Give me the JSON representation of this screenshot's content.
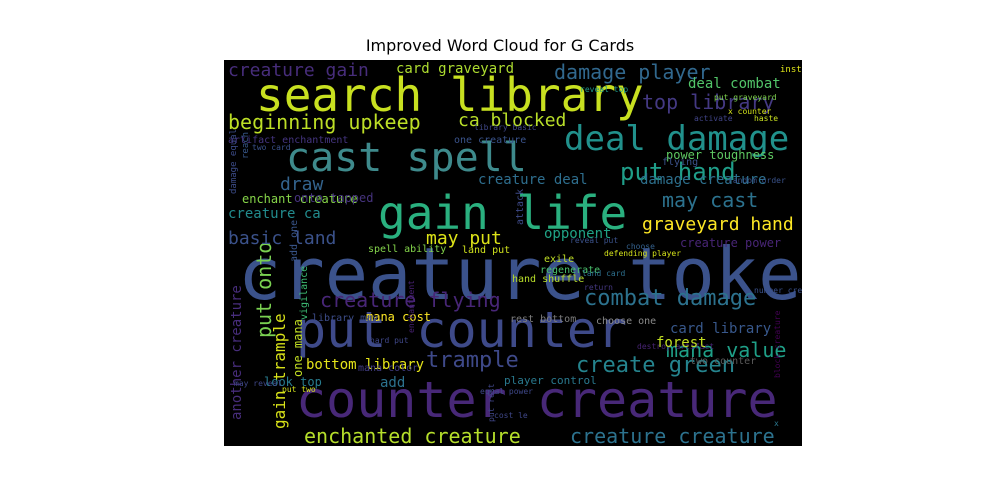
{
  "chart_data": {
    "type": "wordcloud",
    "title": "Improved Word Cloud for G Cards",
    "background": "#000000",
    "colormap": "viridis",
    "words": [
      {
        "text": "creature token",
        "color": "#3b528b"
      },
      {
        "text": "put counter",
        "color": "#3e4a89"
      },
      {
        "text": "counter creature",
        "color": "#482878"
      },
      {
        "text": "search library",
        "color": "#c8e020"
      },
      {
        "text": "gain life",
        "color": "#2ab07f"
      },
      {
        "text": "cast spell",
        "color": "#3e8a8c"
      },
      {
        "text": "deal damage",
        "color": "#21918c"
      },
      {
        "text": "put hand",
        "color": "#1f9e89"
      },
      {
        "text": "combat damage",
        "color": "#2c728e"
      },
      {
        "text": "creature flying",
        "color": "#482677"
      },
      {
        "text": "trample",
        "color": "#3e4989"
      },
      {
        "text": "create green",
        "color": "#25848e"
      },
      {
        "text": "enchanted creature",
        "color": "#b5de2b"
      },
      {
        "text": "creature creature",
        "color": "#2c728e"
      },
      {
        "text": "damage player",
        "color": "#31688e"
      },
      {
        "text": "top library",
        "color": "#443983"
      },
      {
        "text": "beginning upkeep",
        "color": "#bddf26"
      },
      {
        "text": "ca blocked",
        "color": "#b8de29"
      },
      {
        "text": "may cast",
        "color": "#2c728e"
      },
      {
        "text": "put onto",
        "color": "#7ad151"
      },
      {
        "text": "mana value",
        "color": "#1fa088"
      },
      {
        "text": "creature gain",
        "color": "#472d7b"
      },
      {
        "text": "basic land",
        "color": "#3b528b"
      },
      {
        "text": "may put",
        "color": "#dde318"
      },
      {
        "text": "draw",
        "color": "#33638d"
      },
      {
        "text": "graveyard hand",
        "color": "#fde725"
      },
      {
        "text": "damage creature",
        "color": "#2d708e"
      },
      {
        "text": "creature deal",
        "color": "#2e6e8e"
      },
      {
        "text": "card graveyard",
        "color": "#addc30"
      },
      {
        "text": "deal combat",
        "color": "#52c569"
      },
      {
        "text": "another creature",
        "color": "#472d7b"
      },
      {
        "text": "gain trample",
        "color": "#d8e219"
      },
      {
        "text": "creature ca",
        "color": "#228b8d"
      },
      {
        "text": "card library",
        "color": "#38588c"
      },
      {
        "text": "bottom library",
        "color": "#e5e419"
      },
      {
        "text": "opponent",
        "color": "#20a386"
      },
      {
        "text": "add",
        "color": "#2c728e"
      },
      {
        "text": "enchant creature",
        "color": "#86d549"
      },
      {
        "text": "onto tapped",
        "color": "#46337e"
      },
      {
        "text": "power toughness",
        "color": "#5ec962"
      },
      {
        "text": "creature power",
        "color": "#482576"
      },
      {
        "text": "mana cost",
        "color": "#fde725"
      },
      {
        "text": "instead",
        "color": "#dde318"
      },
      {
        "text": "look top",
        "color": "#287c8e"
      },
      {
        "text": "one mana",
        "color": "#c2df23"
      },
      {
        "text": "player control",
        "color": "#29798e"
      },
      {
        "text": "spell ability",
        "color": "#84d44b"
      },
      {
        "text": "artifact enchantment",
        "color": "#453581"
      },
      {
        "text": "one creature",
        "color": "#3a538b"
      },
      {
        "text": "rest bottom",
        "color": "#7e7e7e"
      },
      {
        "text": "choose one",
        "color": "#8a8a8a"
      },
      {
        "text": "two counter",
        "color": "#5a5a5a"
      },
      {
        "text": "exile",
        "color": "#c0df25"
      },
      {
        "text": "regenerate",
        "color": "#4ac16d"
      },
      {
        "text": "hand shuffle",
        "color": "#b8de29"
      },
      {
        "text": "library may",
        "color": "#3d4d8a"
      },
      {
        "text": "land put",
        "color": "#d0e11c"
      },
      {
        "text": "flying",
        "color": "#3b528b"
      },
      {
        "text": "haste",
        "color": "#c8e020"
      },
      {
        "text": "activate",
        "color": "#414487"
      },
      {
        "text": "x counter",
        "color": "#d2e21b"
      },
      {
        "text": "put graveyard",
        "color": "#7fd34e"
      },
      {
        "text": "reveal top",
        "color": "#1f968b"
      },
      {
        "text": "attack",
        "color": "#3e4a89"
      },
      {
        "text": "vigilance",
        "color": "#3dbc74"
      },
      {
        "text": "add one",
        "color": "#39568c"
      },
      {
        "text": "reach",
        "color": "#38588c"
      },
      {
        "text": "damage equal",
        "color": "#3d4d8a"
      },
      {
        "text": "two card",
        "color": "#3b528b"
      },
      {
        "text": "mana color",
        "color": "#433e85"
      },
      {
        "text": "hard put",
        "color": "#3f4788"
      },
      {
        "text": "enchantment",
        "color": "#482173"
      },
      {
        "text": "equal power",
        "color": "#3f4889"
      },
      {
        "text": "destroy artifact",
        "color": "#482475"
      },
      {
        "text": "number creature",
        "color": "#3b518b"
      },
      {
        "text": "land card",
        "color": "#2d708e"
      },
      {
        "text": "defending player",
        "color": "#d5e21a"
      },
      {
        "text": "random order",
        "color": "#3a538b"
      },
      {
        "text": "cost le",
        "color": "#3f4788"
      },
      {
        "text": "put rest",
        "color": "#404688"
      },
      {
        "text": "may reveal",
        "color": "#3f4788"
      },
      {
        "text": "put two",
        "color": "#d2e21b"
      },
      {
        "text": "forest",
        "color": "#c2df23"
      },
      {
        "text": "x",
        "color": "#2a778e"
      },
      {
        "text": "choose",
        "color": "#34618d"
      },
      {
        "text": "return",
        "color": "#453882"
      },
      {
        "text": "reveal put",
        "color": "#3b528b"
      },
      {
        "text": "library basic",
        "color": "#3f4788"
      },
      {
        "text": "block creature",
        "color": "#440154"
      },
      {
        "text": "creature dy",
        "color": "#482878"
      }
    ]
  }
}
